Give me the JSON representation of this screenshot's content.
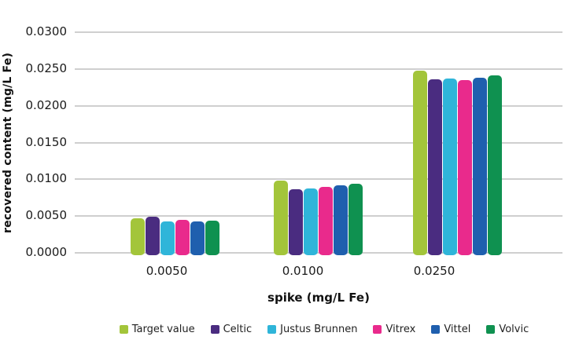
{
  "chart_data": {
    "type": "bar",
    "title": "",
    "xlabel": "spike (mg/L Fe)",
    "ylabel": "recovered content (mg/L Fe)",
    "categories": [
      "0.0050",
      "0.0100",
      "0.0250"
    ],
    "series": [
      {
        "name": "Target value",
        "color": "#a3c53a",
        "values": [
          0.0047,
          0.0098,
          0.0248
        ]
      },
      {
        "name": "Celtic",
        "color": "#4a2c80",
        "values": [
          0.0049,
          0.0086,
          0.0236
        ]
      },
      {
        "name": "Justus Brunnen",
        "color": "#2fb5d9",
        "values": [
          0.0043,
          0.0088,
          0.0237
        ]
      },
      {
        "name": "Vitrex",
        "color": "#e92a8c",
        "values": [
          0.0045,
          0.009,
          0.0235
        ]
      },
      {
        "name": "Vittel",
        "color": "#1f5fae",
        "values": [
          0.0043,
          0.0092,
          0.0238
        ]
      },
      {
        "name": "Volvic",
        "color": "#0f9150",
        "values": [
          0.0044,
          0.0094,
          0.0241
        ]
      }
    ],
    "ylim": [
      0,
      0.03
    ],
    "ytick_step": 0.005,
    "ytick_labels": [
      "0.0000",
      "0.0050",
      "0.0100",
      "0.0150",
      "0.0200",
      "0.0250",
      "0.0300"
    ],
    "grid": true,
    "legend_position": "bottom",
    "bar_corner_style": "rounded"
  },
  "colors": {
    "background": "#ffffff",
    "gridline": "#cfcfcf",
    "tick_text": "#1a1a1a",
    "axis_title_text": "#111111"
  }
}
